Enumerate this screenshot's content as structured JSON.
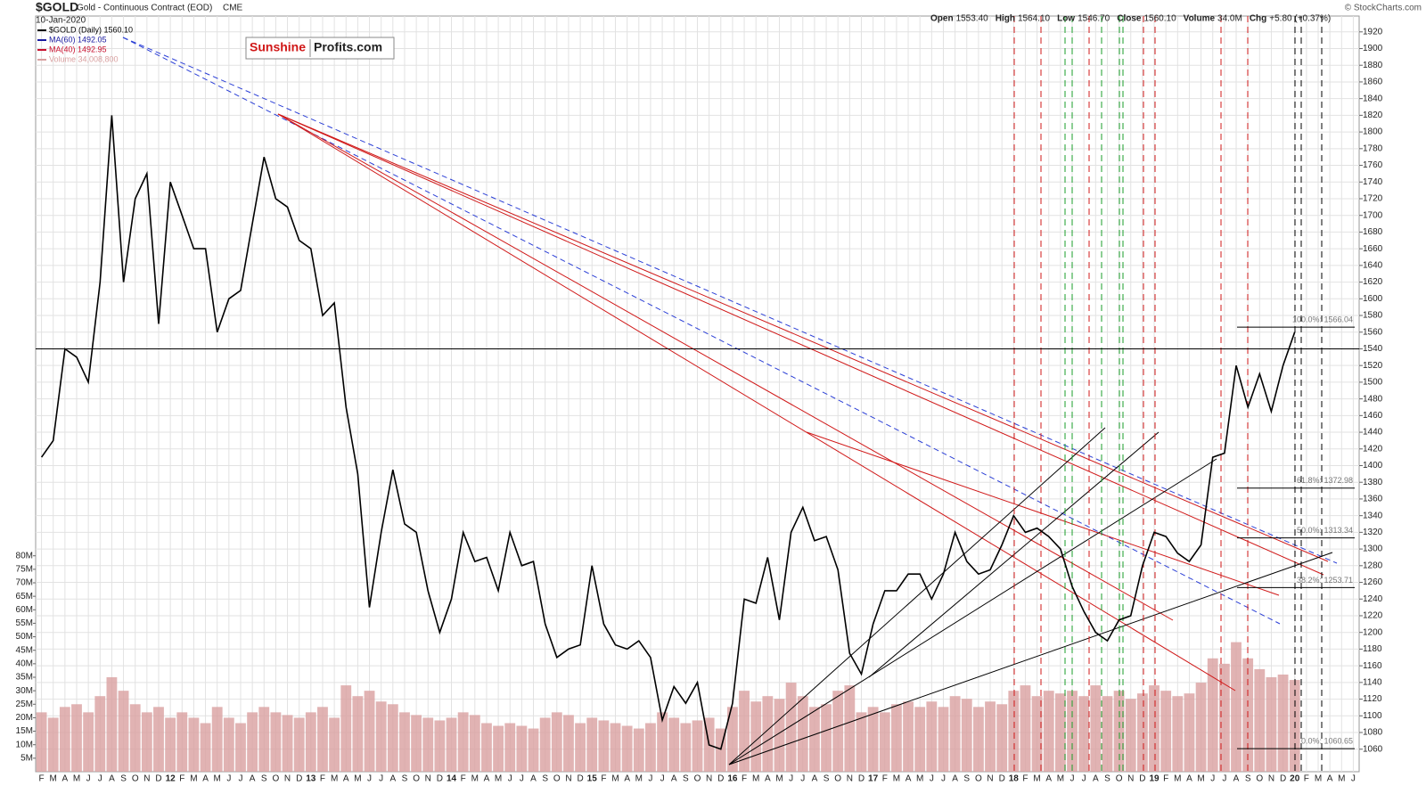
{
  "chart_data": {
    "type": "line",
    "title": "$GOLD",
    "subtitle": "Gold - Continuous Contract (EOD)",
    "exchange": "CME",
    "date": "10-Jan-2020",
    "credit": "© StockCharts.com",
    "stats": [
      {
        "label": "Open",
        "value": "1553.40"
      },
      {
        "label": "High",
        "value": "1564.10"
      },
      {
        "label": "Low",
        "value": "1546.70"
      },
      {
        "label": "Close",
        "value": "1560.10"
      },
      {
        "label": "Volume",
        "value": "34.0M"
      },
      {
        "label": "Chg",
        "value": "+5.80 (+0.37%)"
      }
    ],
    "logo": {
      "part1": "Sunshine",
      "part2": "Profits.com"
    },
    "legend": [
      {
        "name": "MA(60) 1492.05",
        "color": "#1a1aa0"
      },
      {
        "name": "MA(40) 1492.95",
        "color": "#c8102e"
      }
    ],
    "categories": [
      "F",
      "M",
      "A",
      "M",
      "J",
      "J",
      "A",
      "S",
      "O",
      "N",
      "D",
      "12",
      "F",
      "M",
      "A",
      "M",
      "J",
      "J",
      "A",
      "S",
      "O",
      "N",
      "D",
      "13",
      "F",
      "M",
      "A",
      "M",
      "J",
      "J",
      "A",
      "S",
      "O",
      "N",
      "D",
      "14",
      "F",
      "M",
      "A",
      "M",
      "J",
      "J",
      "A",
      "S",
      "O",
      "N",
      "D",
      "15",
      "F",
      "M",
      "A",
      "M",
      "J",
      "J",
      "A",
      "S",
      "O",
      "N",
      "D",
      "16",
      "F",
      "M",
      "A",
      "M",
      "J",
      "J",
      "A",
      "S",
      "O",
      "N",
      "D",
      "17",
      "F",
      "M",
      "A",
      "M",
      "J",
      "J",
      "A",
      "S",
      "O",
      "N",
      "D",
      "18",
      "F",
      "M",
      "A",
      "M",
      "J",
      "J",
      "A",
      "S",
      "O",
      "N",
      "D",
      "19",
      "F",
      "M",
      "A",
      "M",
      "J",
      "J",
      "A",
      "S",
      "O",
      "N",
      "D",
      "20",
      "F",
      "M",
      "A",
      "M",
      "J"
    ],
    "series": [
      {
        "name": "$GOLD (Daily) 1560.10",
        "color": "#000000",
        "values": [
          1410,
          1430,
          1540,
          1530,
          1500,
          1620,
          1820,
          1620,
          1720,
          1750,
          1570,
          1740,
          1700,
          1660,
          1660,
          1560,
          1600,
          1610,
          1690,
          1770,
          1720,
          1710,
          1670,
          1660,
          1580,
          1595,
          1470,
          1390,
          1230,
          1320,
          1395,
          1330,
          1320,
          1250,
          1200,
          1240,
          1320,
          1285,
          1290,
          1250,
          1320,
          1280,
          1285,
          1210,
          1170,
          1180,
          1185,
          1280,
          1210,
          1185,
          1180,
          1190,
          1170,
          1095,
          1135,
          1115,
          1140,
          1065,
          1060,
          1115,
          1240,
          1235,
          1290,
          1215,
          1320,
          1350,
          1310,
          1315,
          1275,
          1175,
          1150,
          1210,
          1250,
          1250,
          1270,
          1270,
          1240,
          1270,
          1320,
          1285,
          1270,
          1275,
          1305,
          1340,
          1320,
          1325,
          1315,
          1300,
          1255,
          1225,
          1200,
          1190,
          1215,
          1220,
          1280,
          1320,
          1315,
          1295,
          1285,
          1305,
          1410,
          1415,
          1520,
          1470,
          1510,
          1465,
          1520,
          1560,
          null,
          null,
          null,
          null,
          null
        ]
      },
      {
        "name": "Volume 34,008,800",
        "color": "#d9a0a0",
        "axis": "volume",
        "values": [
          22,
          20,
          24,
          25,
          22,
          28,
          35,
          30,
          25,
          22,
          24,
          20,
          22,
          20,
          18,
          24,
          20,
          18,
          22,
          24,
          22,
          21,
          20,
          22,
          24,
          20,
          32,
          28,
          30,
          26,
          25,
          22,
          21,
          20,
          19,
          20,
          22,
          21,
          18,
          17,
          18,
          17,
          16,
          20,
          22,
          21,
          18,
          20,
          19,
          18,
          17,
          16,
          18,
          22,
          20,
          18,
          19,
          20,
          16,
          24,
          30,
          26,
          28,
          27,
          33,
          28,
          24,
          25,
          30,
          32,
          22,
          24,
          22,
          25,
          26,
          24,
          26,
          24,
          28,
          27,
          24,
          26,
          25,
          30,
          32,
          28,
          30,
          29,
          30,
          28,
          32,
          28,
          30,
          27,
          29,
          32,
          30,
          28,
          29,
          33,
          42,
          40,
          48,
          42,
          38,
          35,
          36,
          34,
          null,
          null,
          null,
          null,
          null
        ]
      }
    ],
    "ylim": [
      1033,
      1939
    ],
    "yticks": [
      1060,
      1080,
      1100,
      1120,
      1140,
      1160,
      1180,
      1200,
      1220,
      1240,
      1260,
      1280,
      1300,
      1320,
      1340,
      1360,
      1380,
      1400,
      1420,
      1440,
      1460,
      1480,
      1500,
      1520,
      1540,
      1560,
      1580,
      1600,
      1620,
      1640,
      1660,
      1680,
      1700,
      1720,
      1740,
      1760,
      1780,
      1800,
      1820,
      1840,
      1860,
      1880,
      1900,
      1920
    ],
    "vlim": [
      0,
      280
    ],
    "vticks": [
      {
        "value": 5,
        "label": "5M"
      },
      {
        "value": 10,
        "label": "10M"
      },
      {
        "value": 15,
        "label": "15M"
      },
      {
        "value": 20,
        "label": "20M"
      },
      {
        "value": 25,
        "label": "25M"
      },
      {
        "value": 30,
        "label": "30M"
      },
      {
        "value": 35,
        "label": "35M"
      },
      {
        "value": 40,
        "label": "40M"
      },
      {
        "value": 45,
        "label": "45M"
      },
      {
        "value": 50,
        "label": "50M"
      },
      {
        "value": 55,
        "label": "55M"
      },
      {
        "value": 60,
        "label": "60M"
      },
      {
        "value": 65,
        "label": "65M"
      },
      {
        "value": 70,
        "label": "70M"
      },
      {
        "value": 75,
        "label": "75M"
      },
      {
        "value": 80,
        "label": "80M"
      }
    ],
    "reference_line": 1540,
    "fib_levels": [
      {
        "value": 1566.04,
        "label": "100.0%: 1566.04"
      },
      {
        "value": 1372.98,
        "label": "61.8%: 1372.98"
      },
      {
        "value": 1313.34,
        "label": "50.0%: 1313.34"
      },
      {
        "value": 1253.71,
        "label": "38.2%: 1253.71"
      },
      {
        "value": 1060.65,
        "label": "0.0%: 1060.65"
      }
    ],
    "grid": true
  }
}
